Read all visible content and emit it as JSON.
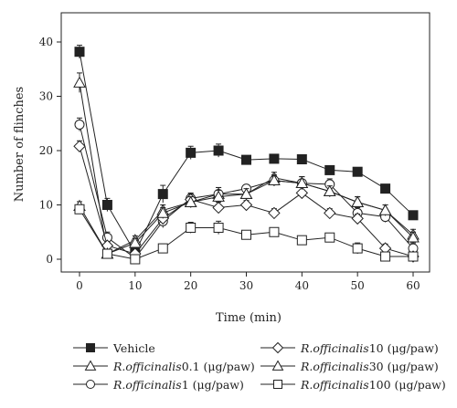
{
  "chart_data": {
    "type": "line",
    "xlabel": "Time (min)",
    "ylabel": "Number of flinches",
    "x": [
      0,
      5,
      10,
      15,
      20,
      25,
      30,
      35,
      40,
      45,
      50,
      55,
      60
    ],
    "xlim": [
      0,
      60
    ],
    "ylim": [
      0,
      40
    ],
    "xticks": [
      0,
      10,
      20,
      30,
      40,
      50,
      60
    ],
    "yticks": [
      0,
      10,
      20,
      30,
      40
    ],
    "grid": false,
    "legend_position": "bottom",
    "series": [
      {
        "name": "Vehicle",
        "marker": "square-filled",
        "values": [
          38.2,
          10.0,
          1.2,
          12.0,
          19.6,
          20.0,
          18.3,
          18.5,
          18.4,
          16.4,
          16.1,
          13.0,
          8.1
        ],
        "errors": [
          1.2,
          1.2,
          1.0,
          1.6,
          1.2,
          1.2,
          0.4,
          0.4,
          0.4,
          0.4,
          0.4,
          0.4,
          0.4
        ]
      },
      {
        "name": "R.officinalis 0.1 (μg/paw)",
        "marker": "triangle-open",
        "values": [
          32.5,
          1.0,
          3.5,
          9.0,
          10.5,
          12.0,
          12.0,
          15.0,
          14.0,
          12.5,
          10.5,
          9.0,
          4.5
        ],
        "errors": [
          1.8,
          0.5,
          0.8,
          1.0,
          1.0,
          1.2,
          1.0,
          1.0,
          1.2,
          1.0,
          1.0,
          1.0,
          1.0
        ]
      },
      {
        "name": "R.officinalis 1 (μg/paw)",
        "marker": "circle-open",
        "values": [
          24.8,
          4.0,
          0.2,
          7.0,
          11.2,
          12.0,
          13.0,
          14.5,
          14.0,
          13.8,
          8.5,
          7.8,
          2.0
        ],
        "errors": [
          1.2,
          1.0,
          0.4,
          1.2,
          1.0,
          1.2,
          0.6,
          1.0,
          1.2,
          1.0,
          1.0,
          1.0,
          1.0
        ]
      },
      {
        "name": "R.officinalis 10 (μg/paw)",
        "marker": "diamond-open",
        "values": [
          20.8,
          2.5,
          1.0,
          7.5,
          11.0,
          9.5,
          10.0,
          8.5,
          12.2,
          8.5,
          7.5,
          2.0,
          0.5
        ],
        "errors": [
          1.0,
          0.6,
          0.4,
          1.0,
          1.0,
          1.0,
          0.8,
          0.8,
          1.0,
          0.8,
          0.8,
          0.8,
          0.5
        ]
      },
      {
        "name": "R.officinalis 30 (μg/paw)",
        "marker": "triangle-open",
        "values": [
          9.8,
          1.0,
          3.0,
          8.5,
          10.5,
          11.5,
          12.0,
          14.5,
          14.0,
          12.5,
          10.5,
          9.0,
          4.0
        ],
        "errors": [
          0.8,
          0.5,
          0.8,
          1.0,
          1.0,
          1.2,
          1.0,
          1.0,
          1.2,
          1.0,
          1.0,
          1.0,
          1.0
        ]
      },
      {
        "name": "R.officinalis 100 (μg/paw)",
        "marker": "square-open",
        "values": [
          9.2,
          1.0,
          0.0,
          2.0,
          5.8,
          5.8,
          4.5,
          5.0,
          3.5,
          4.0,
          2.0,
          0.5,
          0.5
        ],
        "errors": [
          0.6,
          0.5,
          0.3,
          0.8,
          1.0,
          1.2,
          0.6,
          0.8,
          0.6,
          0.6,
          1.0,
          0.5,
          0.5
        ]
      }
    ]
  },
  "legend": {
    "items": [
      {
        "prefix": "Vehicle",
        "suffix": ""
      },
      {
        "prefix": "R.officinalis",
        "suffix": " 0.1 (μg/paw)"
      },
      {
        "prefix": "R.officinalis",
        "suffix": " 1 (μg/paw)"
      },
      {
        "prefix": "R.officinalis",
        "suffix": " 10 (μg/paw)"
      },
      {
        "prefix": "R.officinalis",
        "suffix": " 30 (μg/paw)"
      },
      {
        "prefix": "R.officinalis",
        "suffix": " 100 (μg/paw)"
      }
    ]
  }
}
